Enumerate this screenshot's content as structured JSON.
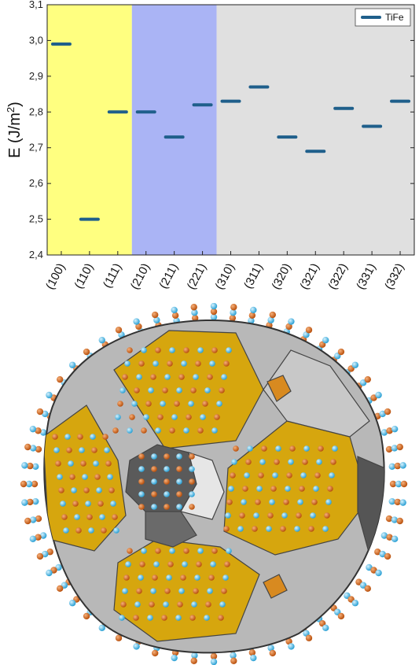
{
  "chart_data": {
    "type": "scatter",
    "categories": [
      "(100)",
      "(110)",
      "(111)",
      "(210)",
      "(211)",
      "(221)",
      "(310)",
      "(311)",
      "(320)",
      "(321)",
      "(322)",
      "(331)",
      "(332)"
    ],
    "series": [
      {
        "name": "TiFe",
        "values": [
          2.99,
          2.5,
          2.8,
          2.8,
          2.73,
          2.82,
          2.83,
          2.87,
          2.73,
          2.69,
          2.81,
          2.76,
          2.83
        ]
      }
    ],
    "ylabel_main": "E (J/m",
    "ylabel_sup": "2",
    "ylabel_close": ")",
    "ylim": [
      2.4,
      3.1
    ],
    "yticks": [
      "2,4",
      "2,5",
      "2,6",
      "2,7",
      "2,8",
      "2,9",
      "3,0",
      "3,1"
    ],
    "regions": [
      {
        "from": 0,
        "to": 3,
        "color": "#ffff80"
      },
      {
        "from": 3,
        "to": 6,
        "color": "#aab4f5"
      },
      {
        "from": 6,
        "to": 13,
        "color": "#e0e0e0"
      }
    ],
    "marker_color": "#1f5f8b",
    "legend_position": "top-right",
    "grid": false
  },
  "crystal": {
    "face_yellow": "#d6a60e",
    "face_gray": "#b8b8b8",
    "face_dark": "#5a5a5a",
    "atom_orange": "#c85a10",
    "atom_cyan": "#3cb4e0"
  }
}
